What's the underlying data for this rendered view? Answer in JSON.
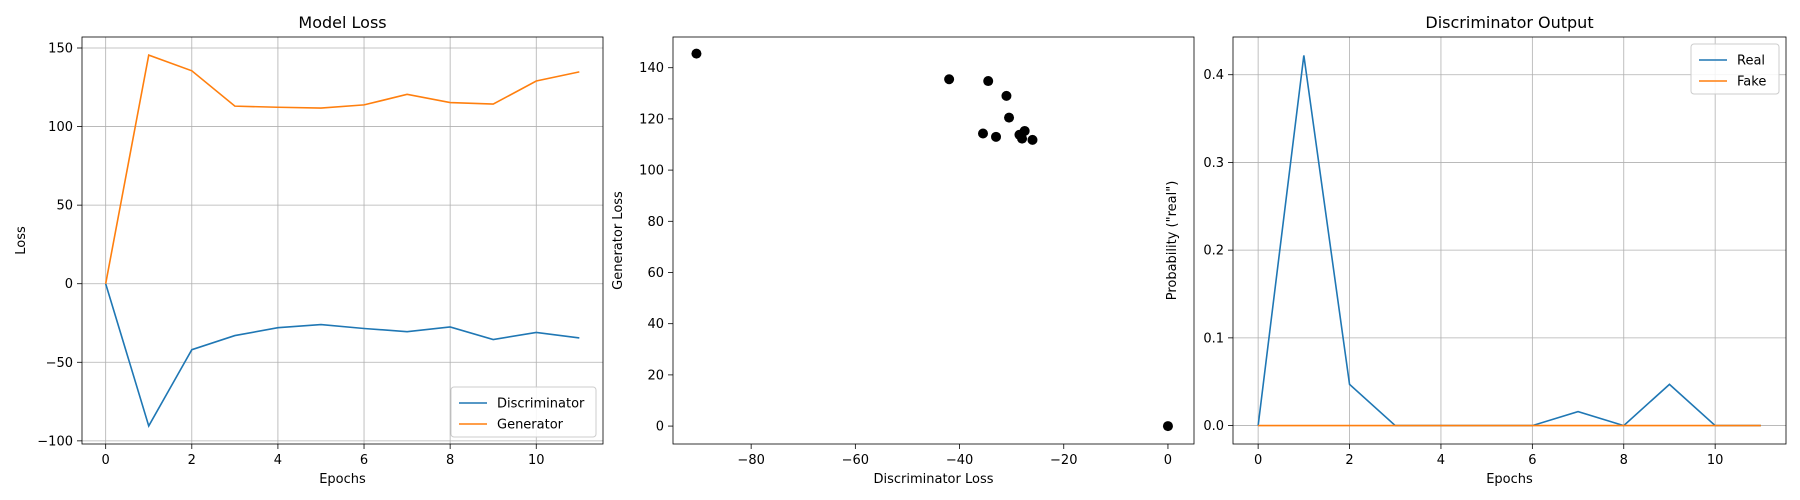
{
  "chart_data": [
    {
      "type": "line",
      "title": "Model Loss",
      "xlabel": "Epochs",
      "ylabel": "Loss",
      "xlim": [
        -0.55,
        11.55
      ],
      "ylim": [
        -102,
        157
      ],
      "xticks": [
        0,
        2,
        4,
        6,
        8,
        10
      ],
      "yticks": [
        -100,
        -50,
        0,
        50,
        100,
        150
      ],
      "grid": true,
      "legend": "lower-right",
      "x": [
        0,
        1,
        2,
        3,
        4,
        5,
        6,
        7,
        8,
        9,
        10,
        11
      ],
      "series": [
        {
          "name": "Discriminator",
          "color": "#1f77b4",
          "values": [
            0,
            -90.5,
            -42,
            -33,
            -28,
            -26,
            -28.5,
            -30.5,
            -27.5,
            -35.5,
            -31,
            -34.5
          ]
        },
        {
          "name": "Generator",
          "color": "#ff7f0e",
          "values": [
            0,
            145.5,
            135.5,
            113,
            112.3,
            111.8,
            113.8,
            120.5,
            115.3,
            114.3,
            129,
            134.8
          ]
        }
      ]
    },
    {
      "type": "scatter",
      "title": "",
      "xlabel": "Discriminator Loss",
      "ylabel": "Generator Loss",
      "xlim": [
        -95,
        5
      ],
      "ylim": [
        -7,
        152
      ],
      "xticks": [
        -80,
        -60,
        -40,
        -20,
        0
      ],
      "yticks": [
        0,
        20,
        40,
        60,
        80,
        100,
        120,
        140
      ],
      "grid": false,
      "color": "#000000",
      "points": [
        {
          "x": -90.5,
          "y": 145.5
        },
        {
          "x": -42.0,
          "y": 135.5
        },
        {
          "x": -34.5,
          "y": 134.8
        },
        {
          "x": -31.0,
          "y": 129.0
        },
        {
          "x": -30.5,
          "y": 120.5
        },
        {
          "x": -35.5,
          "y": 114.3
        },
        {
          "x": -33.0,
          "y": 113.0
        },
        {
          "x": -28.5,
          "y": 113.8
        },
        {
          "x": -27.5,
          "y": 115.3
        },
        {
          "x": -28.0,
          "y": 112.3
        },
        {
          "x": -26.0,
          "y": 111.8
        },
        {
          "x": 0,
          "y": 0
        }
      ]
    },
    {
      "type": "line",
      "title": "Discriminator Output",
      "xlabel": "Epochs",
      "ylabel": "Probability (\"real\")",
      "xlim": [
        -0.55,
        11.55
      ],
      "ylim": [
        -0.021,
        0.443
      ],
      "xticks": [
        0,
        2,
        4,
        6,
        8,
        10
      ],
      "yticks": [
        0.0,
        0.1,
        0.2,
        0.3,
        0.4
      ],
      "ytick_labels": [
        "0.0",
        "0.1",
        "0.2",
        "0.3",
        "0.4"
      ],
      "grid": true,
      "legend": "top-right",
      "x": [
        0,
        1,
        2,
        3,
        4,
        5,
        6,
        7,
        8,
        9,
        10,
        11
      ],
      "series": [
        {
          "name": "Real",
          "color": "#1f77b4",
          "values": [
            0.0,
            0.422,
            0.047,
            0.0,
            0.0,
            0.0,
            0.0,
            0.016,
            0.0,
            0.047,
            0.0,
            0.0
          ]
        },
        {
          "name": "Fake",
          "color": "#ff7f0e",
          "values": [
            0.0,
            0.0,
            0.0,
            0.0,
            0.0,
            0.0,
            0.0,
            0.0,
            0.0,
            0.0,
            0.0,
            0.0
          ]
        }
      ]
    }
  ]
}
